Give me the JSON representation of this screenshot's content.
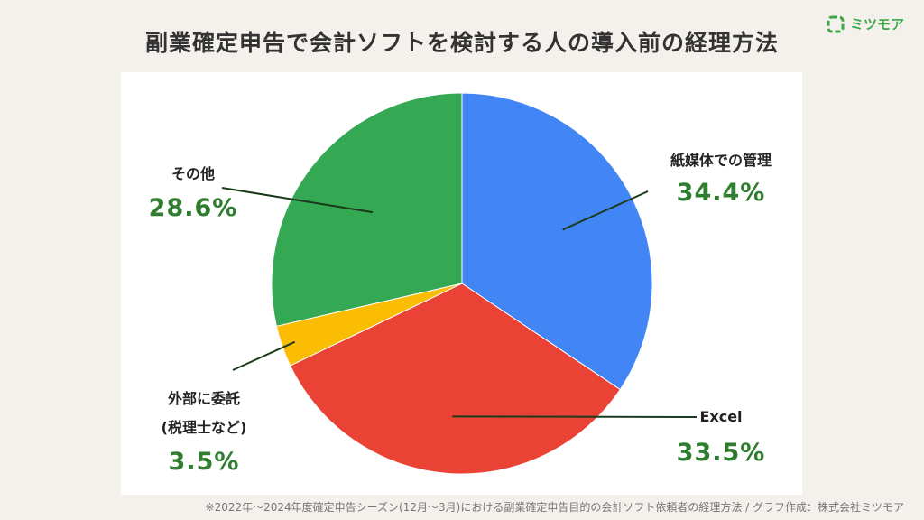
{
  "header": {
    "title": "副業確定申告で会計ソフトを検討する人の導入前の経理方法",
    "logo_text": "ミツモア"
  },
  "chart_data": {
    "type": "pie",
    "title": "副業確定申告で会計ソフトを検討する人の導入前の経理方法",
    "slices": [
      {
        "label": "紙媒体での管理",
        "label2": "",
        "value": 34.4,
        "display": "34.4%",
        "color": "#4285f4"
      },
      {
        "label": "Excel",
        "label2": "",
        "value": 33.5,
        "display": "33.5%",
        "color": "#ea4335"
      },
      {
        "label": "外部に委託",
        "label2": "(税理士など)",
        "value": 3.5,
        "display": "3.5%",
        "color": "#fbbc04"
      },
      {
        "label": "その他",
        "label2": "",
        "value": 28.6,
        "display": "28.6%",
        "color": "#34a853"
      }
    ],
    "legend": "none"
  },
  "footnote": "※2022年〜2024年度確定申告シーズン(12月〜3月)における副業確定申告目的の会計ソフト依頼者の経理方法 / グラフ作成：株式会社ミツモア",
  "colors": {
    "accent": "#2f7d2f",
    "logo": "#3aa845",
    "background": "#f4f1ec"
  }
}
